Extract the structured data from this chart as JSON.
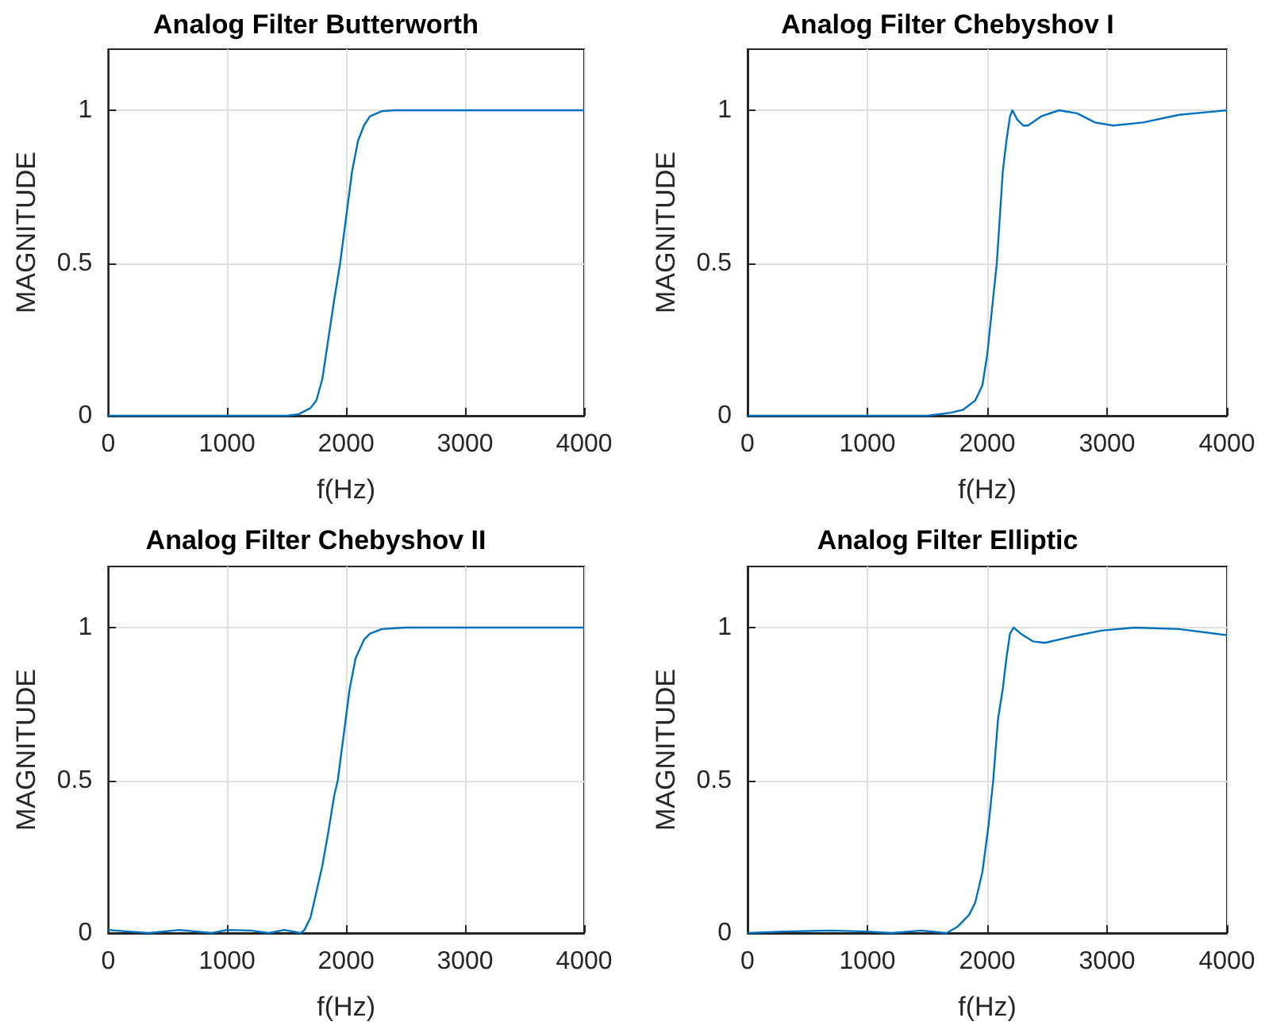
{
  "chart_data": [
    {
      "type": "line",
      "title": "Analog Filter Butterworth",
      "xlabel": "f(Hz)",
      "ylabel": "MAGNITUDE",
      "color": "#0072bd",
      "xlim": [
        0,
        4000
      ],
      "xticks": [
        0,
        1000,
        2000,
        3000,
        4000
      ],
      "ylim": [
        0,
        1.2
      ],
      "yticks": [
        0,
        0.5,
        1
      ],
      "grid": true,
      "x": [
        0,
        1000,
        1500,
        1600,
        1700,
        1750,
        1800,
        1850,
        1900,
        1950,
        2000,
        2050,
        2100,
        2150,
        2200,
        2300,
        2400,
        3000,
        4000
      ],
      "values": [
        0,
        0,
        0,
        0.005,
        0.025,
        0.05,
        0.12,
        0.25,
        0.38,
        0.5,
        0.65,
        0.8,
        0.9,
        0.95,
        0.98,
        0.997,
        1,
        1,
        1
      ]
    },
    {
      "type": "line",
      "title": "Analog Filter Chebyshov I",
      "xlabel": "f(Hz)",
      "ylabel": "MAGNITUDE",
      "color": "#0072bd",
      "xlim": [
        0,
        4000
      ],
      "xticks": [
        0,
        1000,
        2000,
        3000,
        4000
      ],
      "ylim": [
        0,
        1.2
      ],
      "yticks": [
        0,
        0.5,
        1
      ],
      "grid": true,
      "x": [
        0,
        1500,
        1700,
        1800,
        1900,
        1960,
        2000,
        2040,
        2080,
        2130,
        2160,
        2190,
        2210,
        2250,
        2300,
        2340,
        2450,
        2600,
        2750,
        2900,
        3050,
        3300,
        3600,
        4000
      ],
      "values": [
        0,
        0,
        0.01,
        0.02,
        0.05,
        0.1,
        0.2,
        0.35,
        0.5,
        0.8,
        0.9,
        0.98,
        1,
        0.97,
        0.95,
        0.95,
        0.98,
        1,
        0.99,
        0.96,
        0.95,
        0.96,
        0.985,
        1
      ]
    },
    {
      "type": "line",
      "title": "Analog Filter Chebyshov II",
      "xlabel": "f(Hz)",
      "ylabel": "MAGNITUDE",
      "color": "#0072bd",
      "xlim": [
        0,
        4000
      ],
      "xticks": [
        0,
        1000,
        2000,
        3000,
        4000
      ],
      "ylim": [
        0,
        1.2
      ],
      "yticks": [
        0,
        0.5,
        1
      ],
      "grid": true,
      "x": [
        0,
        170,
        340,
        600,
        870,
        1000,
        1200,
        1350,
        1480,
        1620,
        1650,
        1700,
        1730,
        1800,
        1850,
        1900,
        1930,
        1980,
        2030,
        2080,
        2150,
        2200,
        2300,
        2500,
        4000
      ],
      "values": [
        0.01,
        0.005,
        0,
        0.01,
        0,
        0.01,
        0.008,
        0,
        0.01,
        0,
        0.01,
        0.05,
        0.1,
        0.22,
        0.33,
        0.45,
        0.5,
        0.65,
        0.8,
        0.9,
        0.96,
        0.98,
        0.995,
        1,
        1
      ]
    },
    {
      "type": "line",
      "title": "Analog Filter Elliptic",
      "xlabel": "f(Hz)",
      "ylabel": "MAGNITUDE",
      "color": "#0072bd",
      "xlim": [
        0,
        4000
      ],
      "xticks": [
        0,
        1000,
        2000,
        3000,
        4000
      ],
      "ylim": [
        0,
        1.2
      ],
      "yticks": [
        0,
        0.5,
        1
      ],
      "grid": true,
      "x": [
        0,
        300,
        700,
        1000,
        1200,
        1450,
        1660,
        1750,
        1850,
        1900,
        1960,
        2010,
        2050,
        2090,
        2130,
        2160,
        2190,
        2220,
        2280,
        2380,
        2480,
        2700,
        2950,
        3230,
        3600,
        4000
      ],
      "values": [
        0,
        0.005,
        0.008,
        0.005,
        0,
        0.008,
        0,
        0.02,
        0.06,
        0.1,
        0.2,
        0.35,
        0.5,
        0.7,
        0.8,
        0.9,
        0.98,
        1,
        0.98,
        0.955,
        0.95,
        0.97,
        0.99,
        1,
        0.995,
        0.975
      ]
    }
  ]
}
